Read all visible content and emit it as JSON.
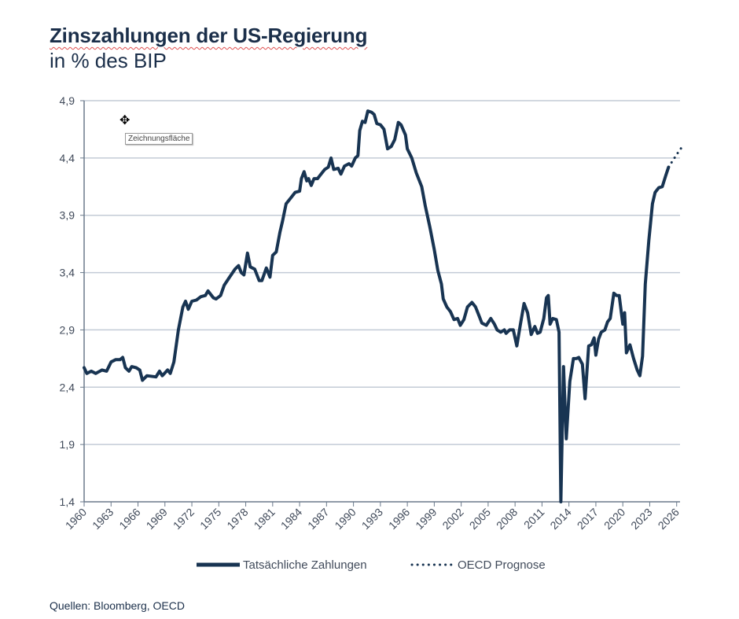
{
  "title": "Zinszahlungen der US-Regierung",
  "subtitle": "in % des BIP",
  "source": "Quellen: Bloomberg, OECD",
  "tooltip": "Zeichnungsfläche",
  "colors": {
    "line": "#183452",
    "grid": "#c3cbd6",
    "text": "#1b2f4a"
  },
  "chart_data": {
    "type": "line",
    "title": "Zinszahlungen der US-Regierung",
    "subtitle": "in % des BIP",
    "xlim": [
      1960,
      2027
    ],
    "ylim": [
      1.4,
      4.9
    ],
    "grid": "horizontal",
    "legend_position": "bottom",
    "y_ticks": [
      "4,9",
      "4,4",
      "3,9",
      "3,4",
      "2,9",
      "2,4",
      "1,9",
      "1,4"
    ],
    "y_tick_values": [
      4.9,
      4.4,
      3.9,
      3.4,
      2.9,
      2.4,
      1.9,
      1.4
    ],
    "x_ticks": [
      "1960",
      "1963",
      "1966",
      "1969",
      "1972",
      "1975",
      "1978",
      "1981",
      "1984",
      "1987",
      "1990",
      "1993",
      "1996",
      "1999",
      "2002",
      "2005",
      "2008",
      "2011",
      "2014",
      "2017",
      "2020",
      "2023",
      "2026"
    ],
    "series": [
      {
        "name": "Tatsächliche Zahlungen",
        "style": "solid",
        "points": [
          [
            1960.0,
            2.57
          ],
          [
            1960.3,
            2.52
          ],
          [
            1960.8,
            2.54
          ],
          [
            1961.3,
            2.52
          ],
          [
            1962,
            2.55
          ],
          [
            1962.5,
            2.54
          ],
          [
            1963,
            2.62
          ],
          [
            1963.5,
            2.64
          ],
          [
            1964,
            2.64
          ],
          [
            1964.3,
            2.66
          ],
          [
            1964.6,
            2.57
          ],
          [
            1965,
            2.54
          ],
          [
            1965.3,
            2.58
          ],
          [
            1965.8,
            2.57
          ],
          [
            1966.2,
            2.55
          ],
          [
            1966.5,
            2.46
          ],
          [
            1967,
            2.5
          ],
          [
            1968,
            2.49
          ],
          [
            1968.4,
            2.54
          ],
          [
            1968.7,
            2.5
          ],
          [
            1969.3,
            2.55
          ],
          [
            1969.6,
            2.52
          ],
          [
            1970,
            2.62
          ],
          [
            1970.5,
            2.9
          ],
          [
            1971,
            3.1
          ],
          [
            1971.3,
            3.15
          ],
          [
            1971.6,
            3.08
          ],
          [
            1972,
            3.15
          ],
          [
            1972.5,
            3.16
          ],
          [
            1973,
            3.19
          ],
          [
            1973.5,
            3.2
          ],
          [
            1973.8,
            3.24
          ],
          [
            1974.4,
            3.18
          ],
          [
            1974.7,
            3.17
          ],
          [
            1975.2,
            3.2
          ],
          [
            1975.6,
            3.29
          ],
          [
            1976.2,
            3.36
          ],
          [
            1976.8,
            3.43
          ],
          [
            1977.2,
            3.46
          ],
          [
            1977.5,
            3.4
          ],
          [
            1977.8,
            3.38
          ],
          [
            1978.2,
            3.57
          ],
          [
            1978.5,
            3.45
          ],
          [
            1979,
            3.43
          ],
          [
            1979.5,
            3.33
          ],
          [
            1979.8,
            3.33
          ],
          [
            1980.3,
            3.44
          ],
          [
            1980.7,
            3.36
          ],
          [
            1981,
            3.55
          ],
          [
            1981.4,
            3.58
          ],
          [
            1981.8,
            3.75
          ],
          [
            1982.1,
            3.85
          ],
          [
            1982.5,
            4.0
          ],
          [
            1983,
            4.05
          ],
          [
            1983.5,
            4.1
          ],
          [
            1984,
            4.11
          ],
          [
            1984.2,
            4.22
          ],
          [
            1984.5,
            4.28
          ],
          [
            1984.8,
            4.2
          ],
          [
            1985,
            4.22
          ],
          [
            1985.3,
            4.16
          ],
          [
            1985.6,
            4.22
          ],
          [
            1986,
            4.22
          ],
          [
            1986.3,
            4.25
          ],
          [
            1986.8,
            4.3
          ],
          [
            1987.2,
            4.32
          ],
          [
            1987.5,
            4.4
          ],
          [
            1987.8,
            4.3
          ],
          [
            1988.3,
            4.31
          ],
          [
            1988.6,
            4.26
          ],
          [
            1989,
            4.33
          ],
          [
            1989.5,
            4.35
          ],
          [
            1989.8,
            4.33
          ],
          [
            1990.2,
            4.4
          ],
          [
            1990.5,
            4.42
          ],
          [
            1990.7,
            4.64
          ],
          [
            1991,
            4.72
          ],
          [
            1991.3,
            4.71
          ],
          [
            1991.6,
            4.81
          ],
          [
            1992,
            4.8
          ],
          [
            1992.3,
            4.78
          ],
          [
            1992.6,
            4.7
          ],
          [
            1993,
            4.69
          ],
          [
            1993.4,
            4.65
          ],
          [
            1993.8,
            4.48
          ],
          [
            1994.2,
            4.5
          ],
          [
            1994.6,
            4.56
          ],
          [
            1995,
            4.71
          ],
          [
            1995.3,
            4.69
          ],
          [
            1995.8,
            4.6
          ],
          [
            1996,
            4.48
          ],
          [
            1996.5,
            4.4
          ],
          [
            1997,
            4.27
          ],
          [
            1997.6,
            4.15
          ],
          [
            1998,
            3.98
          ],
          [
            1998.5,
            3.8
          ],
          [
            1999,
            3.6
          ],
          [
            1999.4,
            3.42
          ],
          [
            1999.8,
            3.3
          ],
          [
            2000,
            3.17
          ],
          [
            2000.4,
            3.1
          ],
          [
            2000.8,
            3.06
          ],
          [
            2001.2,
            2.99
          ],
          [
            2001.6,
            3.0
          ],
          [
            2001.9,
            2.94
          ],
          [
            2002.3,
            2.99
          ],
          [
            2002.7,
            3.1
          ],
          [
            2003.2,
            3.14
          ],
          [
            2003.6,
            3.1
          ],
          [
            2004,
            3.02
          ],
          [
            2004.3,
            2.96
          ],
          [
            2004.8,
            2.94
          ],
          [
            2005.3,
            3.0
          ],
          [
            2005.7,
            2.95
          ],
          [
            2006,
            2.9
          ],
          [
            2006.4,
            2.88
          ],
          [
            2006.8,
            2.9
          ],
          [
            2007,
            2.87
          ],
          [
            2007.4,
            2.9
          ],
          [
            2007.8,
            2.9
          ],
          [
            2008.2,
            2.76
          ],
          [
            2008.6,
            2.95
          ],
          [
            2009,
            3.13
          ],
          [
            2009.4,
            3.05
          ],
          [
            2009.8,
            2.86
          ],
          [
            2010.2,
            2.93
          ],
          [
            2010.5,
            2.87
          ],
          [
            2010.8,
            2.88
          ],
          [
            2011.2,
            3.0
          ],
          [
            2011.5,
            3.18
          ],
          [
            2011.7,
            3.2
          ],
          [
            2011.9,
            2.95
          ],
          [
            2012.2,
            3.0
          ],
          [
            2012.6,
            2.99
          ],
          [
            2012.9,
            2.88
          ],
          [
            2013.1,
            1.4
          ],
          [
            2013.4,
            2.58
          ],
          [
            2013.7,
            1.95
          ],
          [
            2014.1,
            2.45
          ],
          [
            2014.5,
            2.65
          ],
          [
            2014.8,
            2.65
          ],
          [
            2015.1,
            2.66
          ],
          [
            2015.5,
            2.6
          ],
          [
            2015.8,
            2.3
          ],
          [
            2016.2,
            2.76
          ],
          [
            2016.5,
            2.77
          ],
          [
            2016.8,
            2.83
          ],
          [
            2017,
            2.68
          ],
          [
            2017.3,
            2.82
          ],
          [
            2017.6,
            2.88
          ],
          [
            2018,
            2.9
          ],
          [
            2018.3,
            2.97
          ],
          [
            2018.6,
            3.0
          ],
          [
            2019,
            3.22
          ],
          [
            2019.3,
            3.2
          ],
          [
            2019.6,
            3.2
          ],
          [
            2020,
            2.95
          ],
          [
            2020.2,
            3.05
          ],
          [
            2020.4,
            2.7
          ],
          [
            2020.8,
            2.77
          ],
          [
            2021.2,
            2.65
          ],
          [
            2021.6,
            2.55
          ],
          [
            2021.9,
            2.5
          ],
          [
            2022.2,
            2.67
          ],
          [
            2022.5,
            3.3
          ],
          [
            2022.9,
            3.68
          ],
          [
            2023.3,
            4.0
          ],
          [
            2023.6,
            4.1
          ],
          [
            2024,
            4.14
          ],
          [
            2024.4,
            4.15
          ],
          [
            2024.8,
            4.25
          ],
          [
            2025.1,
            4.32
          ]
        ]
      },
      {
        "name": "OECD Prognose",
        "style": "dotted",
        "points": [
          [
            2025.1,
            4.32
          ],
          [
            2026.0,
            4.43
          ],
          [
            2026.8,
            4.52
          ]
        ]
      }
    ]
  }
}
